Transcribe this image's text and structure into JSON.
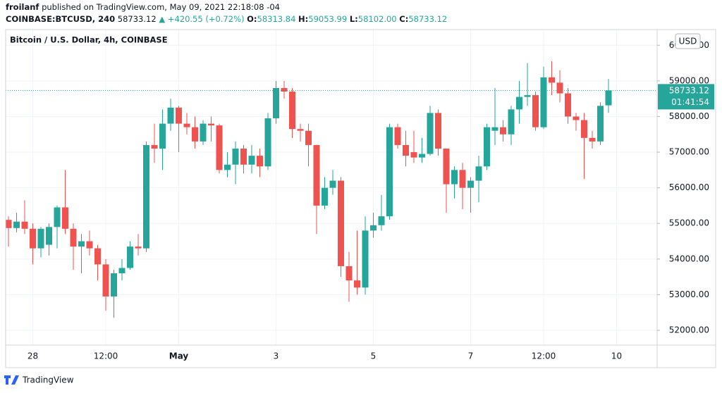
{
  "header": {
    "author": "froilanf",
    "published": "published on TradingView.com, May 09, 2021 22:18:08 -04",
    "symbol": "COINBASE:BTCUSD, 240",
    "price": "58733.12",
    "change": "▲ +420.55 (+0.72%)",
    "o_label": "O:",
    "o": "58313.84",
    "h_label": "H:",
    "h": "59053.99",
    "l_label": "L:",
    "l": "58102.00",
    "c_label": "C:",
    "c": "58733.12"
  },
  "footer": {
    "brand": "TradingView"
  },
  "chart_data": {
    "type": "candlestick",
    "title": "Bitcoin / U.S. Dollar, 4h, COINBASE",
    "currency": "USD",
    "categories": [
      null,
      null,
      null,
      "28",
      null,
      null,
      null,
      null,
      null,
      null,
      null,
      null,
      "12:00",
      null,
      null,
      null,
      null,
      null,
      null,
      null,
      null,
      "May",
      null,
      null,
      null,
      null,
      null,
      null,
      null,
      null,
      null,
      null,
      null,
      "3",
      null,
      null,
      null,
      null,
      null,
      null,
      null,
      null,
      null,
      null,
      null,
      "5",
      null,
      null,
      null,
      null,
      null,
      null,
      null,
      null,
      null,
      null,
      null,
      "7",
      null,
      null,
      null,
      null,
      null,
      null,
      null,
      null,
      "12:00",
      null,
      null,
      null,
      null,
      null,
      null,
      null,
      null,
      "10"
    ],
    "open": [
      55100,
      54870,
      55050,
      54850,
      54300,
      54400,
      54900,
      55450,
      54850,
      54350,
      54500,
      54300,
      53850,
      52950,
      53600,
      53750,
      54350,
      54300,
      57200,
      57100,
      57800,
      58250,
      57800,
      57700,
      57300,
      57800,
      57750,
      56500,
      56650,
      57100,
      56650,
      56900,
      56600,
      57950,
      58800,
      58700,
      57650,
      57600,
      57200,
      55500,
      56000,
      56200,
      53800,
      53400,
      53200,
      54800,
      54950,
      55200,
      57700,
      57200,
      57000,
      56850,
      56950,
      58100,
      57100,
      56100,
      56500,
      56000,
      56200,
      56600,
      57600,
      57700,
      57500,
      58200,
      58550,
      58600,
      57700,
      59100,
      58950,
      58650,
      58000,
      57900,
      57400,
      57300,
      58313.84,
      null
    ],
    "high": [
      55200,
      55300,
      55650,
      55000,
      54900,
      55000,
      55500,
      56500,
      55000,
      54700,
      54800,
      54400,
      54000,
      53700,
      54000,
      54500,
      54700,
      57300,
      57800,
      58200,
      58500,
      58300,
      58100,
      58000,
      57900,
      58000,
      57800,
      57000,
      57300,
      57200,
      57200,
      57100,
      58100,
      59000,
      59000,
      58800,
      57800,
      57800,
      57200,
      56300,
      56500,
      56300,
      54200,
      54800,
      55200,
      55300,
      55800,
      57800,
      57800,
      57600,
      57600,
      57400,
      58300,
      58200,
      57100,
      56600,
      56700,
      56300,
      56900,
      57800,
      58800,
      57900,
      58300,
      59000,
      59500,
      58700,
      59400,
      59550,
      59300,
      58800,
      58100,
      58100,
      57600,
      58400,
      59053.99,
      null
    ],
    "low": [
      54350,
      54750,
      54700,
      53850,
      54050,
      54100,
      54300,
      54700,
      53700,
      53600,
      54100,
      53400,
      52550,
      52350,
      53400,
      53700,
      54100,
      54200,
      56700,
      56500,
      57600,
      57000,
      57500,
      57100,
      57200,
      57300,
      56400,
      56300,
      56100,
      56400,
      56400,
      56300,
      56500,
      57800,
      58500,
      57400,
      57300,
      56600,
      54700,
      55400,
      55800,
      53500,
      52800,
      53000,
      53000,
      54600,
      54800,
      55100,
      57100,
      56600,
      56700,
      56700,
      56900,
      56900,
      55300,
      55700,
      55400,
      55300,
      55600,
      56500,
      57200,
      57300,
      57200,
      57800,
      58300,
      57600,
      57650,
      58600,
      58400,
      57800,
      57600,
      56250,
      57100,
      57200,
      58102,
      null
    ],
    "close": [
      54870,
      55050,
      54850,
      54300,
      54850,
      54900,
      55450,
      54850,
      54350,
      54500,
      54300,
      53850,
      52950,
      53600,
      53750,
      54350,
      54300,
      57200,
      57100,
      57800,
      58250,
      57800,
      57700,
      57300,
      57800,
      57750,
      56500,
      56650,
      57100,
      56650,
      56900,
      56600,
      57950,
      58800,
      58700,
      57650,
      57600,
      57200,
      55500,
      56000,
      56200,
      53800,
      53400,
      53200,
      54800,
      54950,
      55200,
      57700,
      57200,
      56900,
      56850,
      56950,
      58100,
      57100,
      56100,
      56500,
      56000,
      56200,
      56600,
      57700,
      57700,
      57500,
      58200,
      58550,
      58600,
      57700,
      59100,
      58950,
      58650,
      58000,
      57900,
      57400,
      57300,
      58300,
      58733.12,
      null
    ],
    "ylim": [
      51585,
      60440
    ],
    "yticks": [
      {
        "value": 52000,
        "label": "52000.00"
      },
      {
        "value": 53000,
        "label": "53000.00"
      },
      {
        "value": 54000,
        "label": "54000.00"
      },
      {
        "value": 55000,
        "label": "55000.00"
      },
      {
        "value": 56000,
        "label": "56000.00"
      },
      {
        "value": 57000,
        "label": "57000.00"
      },
      {
        "value": 58000,
        "label": "58000.00"
      },
      {
        "value": 59000,
        "label": "59000.00"
      },
      {
        "value": 60000,
        "label": "60000.00"
      }
    ],
    "last_price": 58733.12,
    "countdown": "01:41:54",
    "up_color": "#26a69a",
    "down_color": "#ef5350",
    "grid": true
  }
}
